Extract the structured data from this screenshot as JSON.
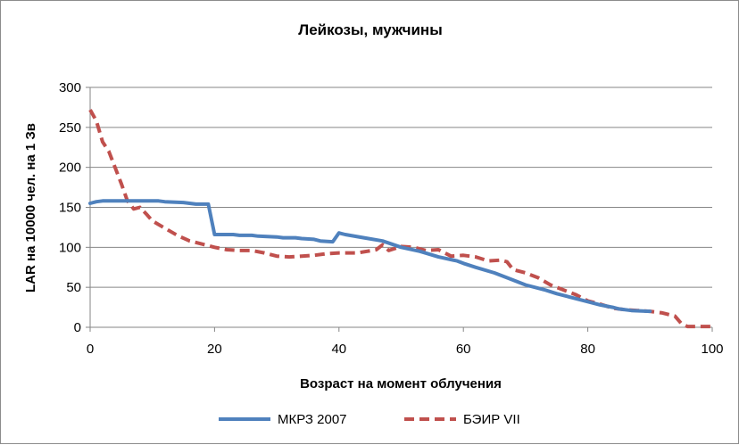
{
  "chart_data": {
    "type": "line",
    "title": "Лейкозы, мужчины",
    "xlabel": "Возраст на момент облучения",
    "ylabel": "LAR на 10000 чел. на 1 Зв",
    "xlim": [
      0,
      100
    ],
    "ylim": [
      0,
      300
    ],
    "xticks": [
      0,
      20,
      40,
      60,
      80,
      100
    ],
    "yticks": [
      0,
      50,
      100,
      150,
      200,
      250,
      300
    ],
    "grid": "horizontal",
    "legend_position": "bottom",
    "series": [
      {
        "name": "МКРЗ 2007",
        "color": "#4f81bd",
        "style": "solid",
        "x": [
          0,
          1,
          2,
          5,
          10,
          11,
          12,
          15,
          16,
          17,
          19,
          20,
          21,
          23,
          24,
          26,
          27,
          30,
          31,
          33,
          34,
          36,
          37,
          39,
          40,
          41,
          44,
          47,
          50,
          53,
          56,
          59,
          60,
          62,
          65,
          67,
          70,
          73,
          75,
          77,
          80,
          82,
          84,
          85,
          87,
          90
        ],
        "values": [
          155,
          157,
          158,
          158,
          158,
          158,
          157,
          156,
          155,
          154,
          154,
          116,
          116,
          116,
          115,
          115,
          114,
          113,
          112,
          112,
          111,
          110,
          108,
          107,
          118,
          116,
          112,
          108,
          100,
          95,
          88,
          83,
          80,
          75,
          68,
          62,
          53,
          47,
          42,
          38,
          32,
          28,
          25,
          23,
          21,
          20
        ]
      },
      {
        "name": "БЭИР VII",
        "color": "#c0504d",
        "style": "dashed",
        "x": [
          0,
          1,
          2,
          3,
          4,
          5,
          6,
          7,
          8,
          9,
          10,
          12,
          14,
          16,
          18,
          20,
          22,
          24,
          26,
          28,
          30,
          32,
          34,
          36,
          38,
          40,
          43,
          46,
          47,
          48,
          50,
          52,
          54,
          56,
          58,
          60,
          62,
          64,
          66,
          67,
          68,
          70,
          72,
          74,
          76,
          78,
          80,
          82,
          84,
          86,
          88,
          90,
          92,
          94,
          95,
          96,
          98,
          100
        ],
        "values": [
          272,
          258,
          232,
          220,
          200,
          180,
          158,
          148,
          150,
          142,
          133,
          124,
          115,
          108,
          104,
          100,
          97,
          96,
          96,
          93,
          89,
          88,
          89,
          90,
          92,
          93,
          93,
          97,
          103,
          96,
          101,
          100,
          96,
          97,
          89,
          90,
          88,
          83,
          84,
          82,
          72,
          68,
          62,
          53,
          47,
          41,
          33,
          29,
          24,
          22,
          21,
          20,
          18,
          14,
          5,
          1,
          1,
          1
        ]
      }
    ]
  }
}
